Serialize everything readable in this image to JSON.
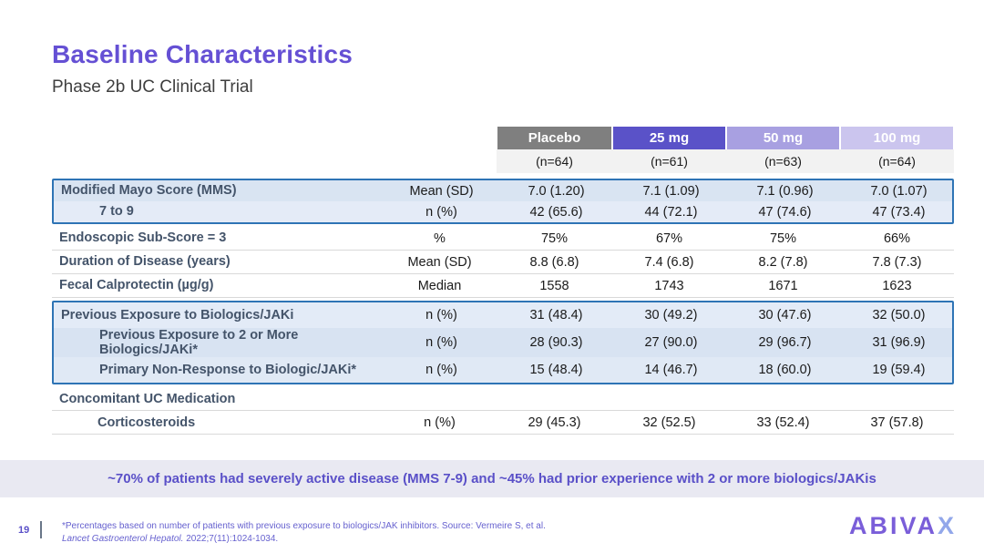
{
  "header": {
    "title": "Baseline Characteristics",
    "subtitle": "Phase 2b UC Clinical Trial"
  },
  "table": {
    "columns": [
      {
        "label": "Placebo",
        "n": "(n=64)",
        "bg": "#7f7f7f"
      },
      {
        "label": "25 mg",
        "n": "(n=61)",
        "bg": "#5a52c8"
      },
      {
        "label": "50 mg",
        "n": "(n=63)",
        "bg": "#a8a0e1"
      },
      {
        "label": "100 mg",
        "n": "(n=64)",
        "bg": "#cbc5ee"
      }
    ],
    "rows": [
      {
        "label": "Modified Mayo Score (MMS)",
        "stat": "Mean (SD)",
        "values": [
          "7.0 (1.20)",
          "7.1 (1.09)",
          "7.1 (0.96)",
          "7.0 (1.07)"
        ]
      },
      {
        "label": "7 to 9",
        "stat": "n (%)",
        "values": [
          "42 (65.6)",
          "44 (72.1)",
          "47 (74.6)",
          "47 (73.4)"
        ]
      },
      {
        "label": "Endoscopic Sub-Score = 3",
        "stat": "%",
        "values": [
          "75%",
          "67%",
          "75%",
          "66%"
        ]
      },
      {
        "label": "Duration of Disease (years)",
        "stat": "Mean (SD)",
        "values": [
          "8.8 (6.8)",
          "7.4 (6.8)",
          "8.2 (7.8)",
          "7.8 (7.3)"
        ]
      },
      {
        "label": "Fecal Calprotectin (µg/g)",
        "stat": "Median",
        "values": [
          "1558",
          "1743",
          "1671",
          "1623"
        ]
      },
      {
        "label": "Previous Exposure to Biologics/JAKi",
        "stat": "n (%)",
        "values": [
          "31 (48.4)",
          "30 (49.2)",
          "30 (47.6)",
          "32 (50.0)"
        ]
      },
      {
        "label": "Previous Exposure to 2 or More Biologics/JAKi*",
        "stat": "n (%)",
        "values": [
          "28 (90.3)",
          "27 (90.0)",
          "29 (96.7)",
          "31 (96.9)"
        ]
      },
      {
        "label": "Primary Non-Response to Biologic/JAKi*",
        "stat": "n (%)",
        "values": [
          "15 (48.4)",
          "14 (46.7)",
          "18 (60.0)",
          "19 (59.4)"
        ]
      },
      {
        "label": "Concomitant UC Medication",
        "stat": "",
        "values": [
          "",
          "",
          "",
          ""
        ]
      },
      {
        "label": "Corticosteroids",
        "stat": "n (%)",
        "values": [
          "29 (45.3)",
          "32 (52.5)",
          "33 (52.4)",
          "37 (57.8)"
        ]
      }
    ]
  },
  "callout": {
    "text": "~70% of patients had severely active disease (MMS 7-9) and ~45% had prior experience with 2 or more biologics/JAKis",
    "bg": "#e9e9f2",
    "text_color": "#5a50c8"
  },
  "footer": {
    "page_number": "19",
    "footnote_line1": "*Percentages based on number of patients with previous exposure to biologics/JAK inhibitors. Source: Vermeire S, et al.",
    "footnote_journal": "Lancet Gastroenterol Hepatol.",
    "footnote_citation": " 2022;7(11):1024-1034.",
    "logo_main": "ABIVA",
    "logo_last": "X"
  },
  "colors": {
    "title_purple": "#6550d4",
    "highlight_border_blue": "#2e74b5",
    "highlight_fill_blue": "#dce6f4",
    "row_label_slate": "#44546a"
  }
}
